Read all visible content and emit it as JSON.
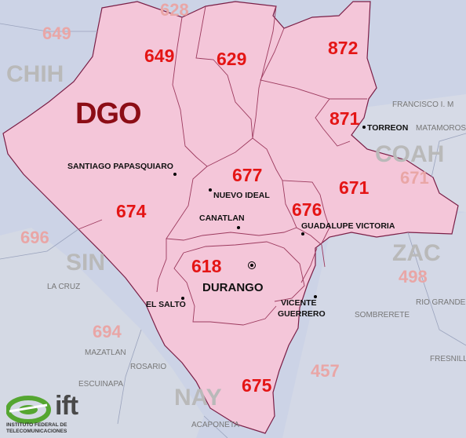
{
  "state": "DGO",
  "neighbor_states": [
    "CHIH",
    "COAH",
    "SIN",
    "ZAC",
    "NAY"
  ],
  "area_codes": [
    "649",
    "629",
    "872",
    "871",
    "677",
    "671",
    "676",
    "674",
    "618",
    "675"
  ],
  "neighbor_codes": [
    "628",
    "649",
    "671",
    "696",
    "498",
    "694",
    "457"
  ],
  "cities": {
    "santiago": "SANTIAGO PAPASQUIARO",
    "nuevo_ideal": "NUEVO IDEAL",
    "canatlan": "CANATLAN",
    "guadalupe": "GUADALUPE VICTORIA",
    "durango": "DURANGO",
    "el_salto": "EL SALTO",
    "vicente1": "VICENTE",
    "vicente2": "GUERRERO",
    "torreon": "TORREON"
  },
  "neighbor_cities": [
    "FRANCISCO I. M",
    "MATAMOROS",
    "LA CRUZ",
    "MAZATLAN",
    "ROSARIO",
    "ESCUINAPA",
    "ACAPONETA",
    "RIO GRANDE",
    "SOMBRERETE",
    "FRESNILLO"
  ],
  "logo": {
    "name": "ift",
    "line1": "INSTITUTO FEDERAL DE",
    "line2": "TELECOMUNICACIONES"
  },
  "colors": {
    "state_fill": "#f4c6d9",
    "neighbor_fill": "#cdd4e6",
    "water": "#aebde0",
    "code_red": "#e41515",
    "state_label": "#8c0d16",
    "logo_green": "#55a631"
  }
}
